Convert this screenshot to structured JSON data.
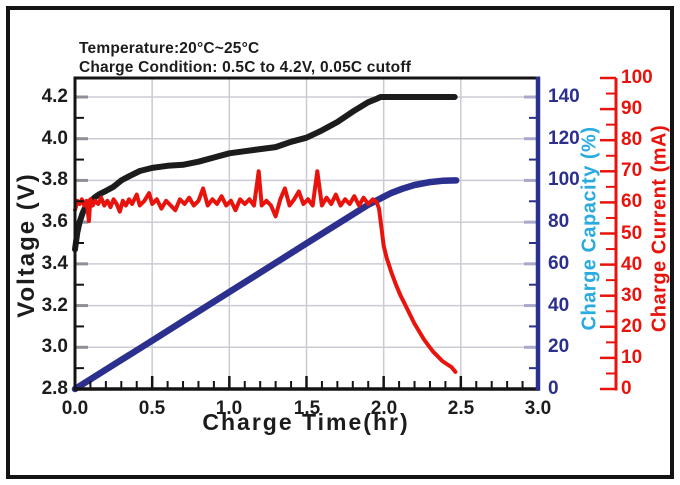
{
  "figure": {
    "background": "#ffffff",
    "border_color": "#141414"
  },
  "chart_data": {
    "type": "line",
    "title": "",
    "annotations": [
      "Temperature:20°C~25°C",
      "Charge Condition: 0.5C to 4.2V, 0.05C cutoff"
    ],
    "grid": "on",
    "grid_color": "#cbcbd4",
    "x_axis": {
      "label": "Charge Time(hr)",
      "min": 0,
      "max": 3,
      "major_step": 0.5,
      "minor_step": 0.1,
      "tick_labels": [
        "0.0",
        "0.5",
        "1.0",
        "1.5",
        "2.0",
        "2.5",
        "3.0"
      ]
    },
    "y_voltage": {
      "label": "Voltage (V)",
      "min": 2.8,
      "max": 4.2,
      "major_step": 0.2,
      "minor_step": 0.1,
      "tick_labels": [
        "4.2",
        "4.0",
        "3.8",
        "3.6",
        "3.4",
        "3.2",
        "3.0",
        "2.8"
      ],
      "color": "#1c1c1c"
    },
    "y_capacity": {
      "label": "Charge Capacity (%)",
      "min": 0,
      "max": 140,
      "major_step": 20,
      "minor_step": 10,
      "tick_labels": [
        "140",
        "120",
        "100",
        "80",
        "60",
        "40",
        "20",
        "0"
      ],
      "number_color": "#2b2f8e",
      "label_color": "#29abe2"
    },
    "y_current": {
      "label": "Charge Current (mA)",
      "min": 0,
      "max": 100,
      "major_step": 10,
      "minor_step": 5,
      "tick_labels": [
        "100",
        "90",
        "80",
        "70",
        "60",
        "50",
        "40",
        "30",
        "20",
        "10",
        "0"
      ],
      "color": "#e8130c"
    },
    "series": [
      {
        "name": "Voltage",
        "axis": "voltage",
        "color": "#1c1c1c",
        "points": [
          [
            0,
            3.47
          ],
          [
            0.015,
            3.55
          ],
          [
            0.03,
            3.6
          ],
          [
            0.05,
            3.645
          ],
          [
            0.07,
            3.675
          ],
          [
            0.1,
            3.7
          ],
          [
            0.13,
            3.72
          ],
          [
            0.16,
            3.735
          ],
          [
            0.2,
            3.75
          ],
          [
            0.25,
            3.77
          ],
          [
            0.3,
            3.8
          ],
          [
            0.35,
            3.82
          ],
          [
            0.42,
            3.845
          ],
          [
            0.5,
            3.86
          ],
          [
            0.6,
            3.87
          ],
          [
            0.7,
            3.875
          ],
          [
            0.8,
            3.89
          ],
          [
            0.9,
            3.91
          ],
          [
            1.0,
            3.93
          ],
          [
            1.1,
            3.94
          ],
          [
            1.2,
            3.95
          ],
          [
            1.3,
            3.96
          ],
          [
            1.4,
            3.985
          ],
          [
            1.5,
            4.005
          ],
          [
            1.6,
            4.04
          ],
          [
            1.7,
            4.08
          ],
          [
            1.8,
            4.13
          ],
          [
            1.9,
            4.175
          ],
          [
            1.95,
            4.19
          ],
          [
            1.98,
            4.2
          ],
          [
            2.46,
            4.2
          ]
        ]
      },
      {
        "name": "Charge Capacity",
        "axis": "capacity",
        "color": "#2b2f8e",
        "points": [
          [
            0,
            0
          ],
          [
            0.25,
            11.6
          ],
          [
            0.5,
            23.2
          ],
          [
            0.75,
            34.9
          ],
          [
            1.0,
            46.5
          ],
          [
            1.25,
            58.1
          ],
          [
            1.5,
            69.8
          ],
          [
            1.75,
            81.4
          ],
          [
            1.9,
            88.3
          ],
          [
            1.97,
            91
          ],
          [
            2.05,
            94
          ],
          [
            2.12,
            96
          ],
          [
            2.2,
            97.8
          ],
          [
            2.3,
            99.2
          ],
          [
            2.38,
            99.8
          ],
          [
            2.47,
            100
          ]
        ]
      },
      {
        "name": "Charge Current",
        "axis": "current",
        "color": "#e8130c",
        "points": [
          [
            0,
            57.5
          ],
          [
            0.015,
            60.5
          ],
          [
            0.03,
            59.5
          ],
          [
            0.045,
            61
          ],
          [
            0.06,
            59
          ],
          [
            0.075,
            60.5
          ],
          [
            0.09,
            54
          ],
          [
            0.1,
            61
          ],
          [
            0.115,
            59
          ],
          [
            0.13,
            60.5
          ],
          [
            0.15,
            59.5
          ],
          [
            0.17,
            61.5
          ],
          [
            0.19,
            59
          ],
          [
            0.21,
            60.5
          ],
          [
            0.23,
            58.5
          ],
          [
            0.25,
            61
          ],
          [
            0.27,
            59.5
          ],
          [
            0.29,
            57
          ],
          [
            0.31,
            60.5
          ],
          [
            0.33,
            59
          ],
          [
            0.35,
            61
          ],
          [
            0.37,
            59.5
          ],
          [
            0.4,
            62.5
          ],
          [
            0.42,
            59
          ],
          [
            0.45,
            60.5
          ],
          [
            0.48,
            63
          ],
          [
            0.5,
            59.5
          ],
          [
            0.53,
            61
          ],
          [
            0.56,
            58
          ],
          [
            0.59,
            60.5
          ],
          [
            0.62,
            59
          ],
          [
            0.65,
            57.5
          ],
          [
            0.68,
            61
          ],
          [
            0.71,
            59.5
          ],
          [
            0.74,
            61.5
          ],
          [
            0.77,
            59
          ],
          [
            0.8,
            60.5
          ],
          [
            0.83,
            64.5
          ],
          [
            0.86,
            59
          ],
          [
            0.89,
            61
          ],
          [
            0.92,
            59.5
          ],
          [
            0.95,
            62
          ],
          [
            0.98,
            59
          ],
          [
            1.01,
            60.5
          ],
          [
            1.04,
            57.5
          ],
          [
            1.07,
            61
          ],
          [
            1.1,
            59.5
          ],
          [
            1.13,
            61
          ],
          [
            1.16,
            59
          ],
          [
            1.19,
            70
          ],
          [
            1.21,
            59
          ],
          [
            1.24,
            60.5
          ],
          [
            1.27,
            59
          ],
          [
            1.3,
            55.5
          ],
          [
            1.33,
            61
          ],
          [
            1.36,
            64.5
          ],
          [
            1.39,
            59
          ],
          [
            1.42,
            61
          ],
          [
            1.45,
            63.5
          ],
          [
            1.48,
            59.5
          ],
          [
            1.51,
            61
          ],
          [
            1.54,
            59
          ],
          [
            1.57,
            70
          ],
          [
            1.6,
            59
          ],
          [
            1.63,
            61.5
          ],
          [
            1.66,
            59.5
          ],
          [
            1.69,
            62.5
          ],
          [
            1.72,
            59
          ],
          [
            1.75,
            61
          ],
          [
            1.78,
            59.5
          ],
          [
            1.81,
            62
          ],
          [
            1.84,
            59
          ],
          [
            1.87,
            61.5
          ],
          [
            1.9,
            59.5
          ],
          [
            1.93,
            61
          ],
          [
            1.955,
            60
          ],
          [
            1.97,
            58
          ],
          [
            1.985,
            52
          ],
          [
            2.0,
            46
          ],
          [
            2.02,
            42
          ],
          [
            2.05,
            37.5
          ],
          [
            2.08,
            33.5
          ],
          [
            2.11,
            30
          ],
          [
            2.14,
            27
          ],
          [
            2.17,
            24
          ],
          [
            2.2,
            21
          ],
          [
            2.23,
            18.5
          ],
          [
            2.26,
            16
          ],
          [
            2.29,
            14
          ],
          [
            2.32,
            12
          ],
          [
            2.35,
            10.5
          ],
          [
            2.38,
            9
          ],
          [
            2.41,
            8
          ],
          [
            2.44,
            7
          ],
          [
            2.465,
            5.5
          ]
        ]
      }
    ]
  }
}
